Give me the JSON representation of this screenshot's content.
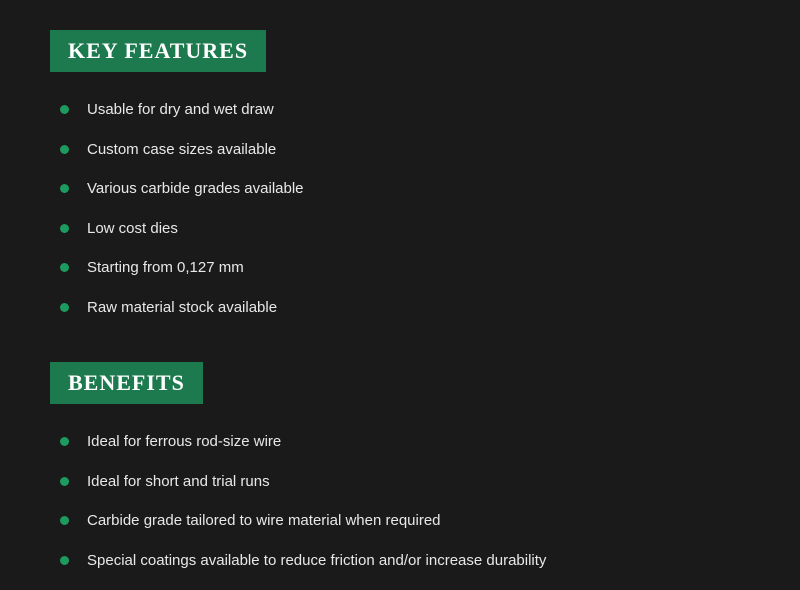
{
  "sections": [
    {
      "header": "KEY FEATURES",
      "items": [
        "Usable for dry and wet draw",
        "Custom case sizes available",
        "Various carbide grades available",
        "Low cost dies",
        "Starting from 0,127 mm",
        "Raw material stock available"
      ]
    },
    {
      "header": "BENEFITS",
      "items": [
        "Ideal for ferrous rod-size wire",
        "Ideal for short and trial runs",
        "Carbide grade tailored to wire material when required",
        "Special coatings available to reduce friction and/or increase durability"
      ]
    }
  ],
  "colors": {
    "background": "#1a1a1a",
    "badge_bg": "#1d7a4f",
    "bullet": "#1d9b5e",
    "text": "#e8e8e8",
    "header_text": "#ffffff"
  },
  "typography": {
    "header_fontsize": 22,
    "header_font": "Georgia serif",
    "item_fontsize": 15,
    "item_font": "Arial sans-serif"
  }
}
